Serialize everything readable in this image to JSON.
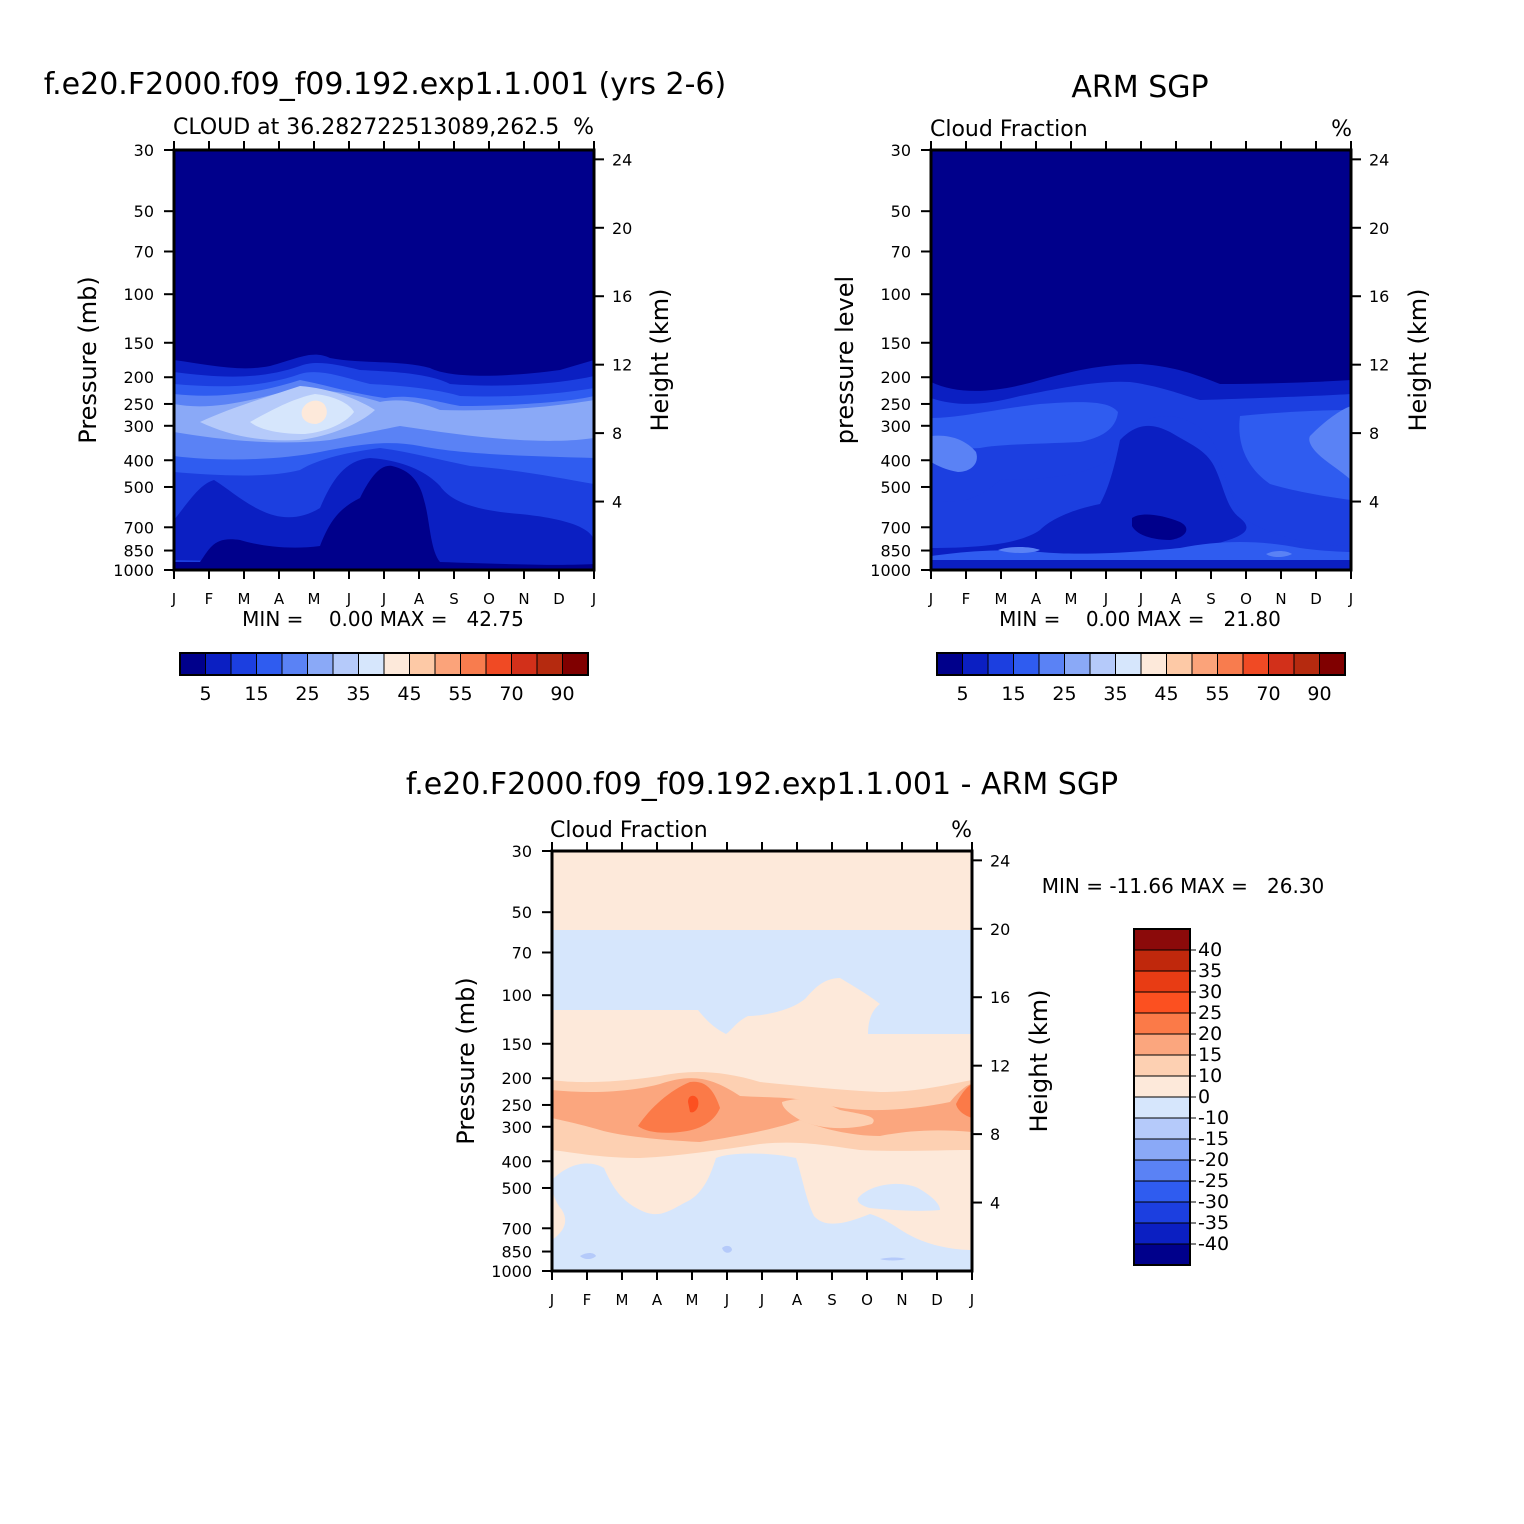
{
  "colors": {
    "deep_navy": "#00008b",
    "band_dark": "#0b1fc2",
    "band_mid": "#1c3fe0",
    "band_blue": "#2f5cf0",
    "band_periwinkle": "#5a82f5",
    "band_light": "#8aa9f7",
    "band_pale": "#b5cafa",
    "band_ice": "#d6e6fc",
    "peach_pale": "#fde9da",
    "peach": "#fdc9a6",
    "salmon": "#fba37a",
    "orange": "#f87c4e",
    "red_orange": "#f04a24"
  },
  "chart_data": [
    {
      "type": "heatmap",
      "suptitle": "f.e20.F2000.f09_f09.192.exp1.1.001 (yrs 2-6)",
      "left_string": "CLOUD at 36.282722513089,262.5",
      "right_string": "%",
      "ylabel": "Pressure (mb)",
      "y2label": "Height (km)",
      "minmax": "MIN =    0.00 MAX =   42.75",
      "min": 0.0,
      "max": 42.75,
      "months": [
        "J",
        "F",
        "M",
        "A",
        "M",
        "J",
        "J",
        "A",
        "S",
        "O",
        "N",
        "D",
        "J"
      ],
      "pressure_ticks": [
        "30",
        "50",
        "70",
        "100",
        "150",
        "200",
        "250",
        "300",
        "400",
        "500",
        "700",
        "850",
        "1000"
      ],
      "pressure_values": [
        30,
        50,
        70,
        100,
        150,
        200,
        250,
        300,
        400,
        500,
        700,
        850,
        1000
      ],
      "height_ticks": [
        "24",
        "20",
        "16",
        "12",
        "8",
        "4"
      ],
      "height_values_km": [
        24,
        20,
        16,
        12,
        8,
        4
      ],
      "colorbar_labels": [
        "5",
        "15",
        "25",
        "35",
        "45",
        "55",
        "70",
        "90"
      ],
      "colorbar_levels": [
        5,
        10,
        15,
        20,
        25,
        30,
        35,
        40,
        45,
        50,
        55,
        60,
        70,
        80,
        90
      ],
      "colorbar_colors": [
        "#00008b",
        "#0b1fc2",
        "#1c3fe0",
        "#2f5cf0",
        "#5a82f5",
        "#8aa9f7",
        "#b5cafa",
        "#d6e6fc",
        "#fde9da",
        "#fdc9a6",
        "#fba37a",
        "#f87c4e",
        "#f04a24",
        "#d2301a",
        "#b52a0f",
        "#800000"
      ]
    },
    {
      "type": "heatmap",
      "suptitle": "ARM SGP",
      "left_string": "Cloud Fraction",
      "right_string": "%",
      "ylabel": "pressure level",
      "y2label": "Height (km)",
      "minmax": "MIN =    0.00 MAX =   21.80",
      "min": 0.0,
      "max": 21.8,
      "months": [
        "J",
        "F",
        "M",
        "A",
        "M",
        "J",
        "J",
        "A",
        "S",
        "O",
        "N",
        "D",
        "J"
      ],
      "pressure_ticks": [
        "30",
        "50",
        "70",
        "100",
        "150",
        "200",
        "250",
        "300",
        "400",
        "500",
        "700",
        "850",
        "1000"
      ],
      "pressure_values": [
        30,
        50,
        70,
        100,
        150,
        200,
        250,
        300,
        400,
        500,
        700,
        850,
        1000
      ],
      "height_ticks": [
        "24",
        "20",
        "16",
        "12",
        "8",
        "4"
      ],
      "height_values_km": [
        24,
        20,
        16,
        12,
        8,
        4
      ],
      "colorbar_labels": [
        "5",
        "15",
        "25",
        "35",
        "45",
        "55",
        "70",
        "90"
      ],
      "colorbar_levels": [
        5,
        10,
        15,
        20,
        25,
        30,
        35,
        40,
        45,
        50,
        55,
        60,
        70,
        80,
        90
      ],
      "colorbar_colors": [
        "#00008b",
        "#0b1fc2",
        "#1c3fe0",
        "#2f5cf0",
        "#5a82f5",
        "#8aa9f7",
        "#b5cafa",
        "#d6e6fc",
        "#fde9da",
        "#fdc9a6",
        "#fba37a",
        "#f87c4e",
        "#f04a24",
        "#d2301a",
        "#b52a0f",
        "#800000"
      ]
    },
    {
      "type": "heatmap",
      "suptitle": "f.e20.F2000.f09_f09.192.exp1.1.001 - ARM SGP",
      "left_string": "Cloud Fraction",
      "right_string": "%",
      "ylabel": "Pressure (mb)",
      "y2label": "Height (km)",
      "minmax": "MIN = -11.66 MAX =   26.30",
      "min": -11.66,
      "max": 26.3,
      "months": [
        "J",
        "F",
        "M",
        "A",
        "M",
        "J",
        "J",
        "A",
        "S",
        "O",
        "N",
        "D",
        "J"
      ],
      "pressure_ticks": [
        "30",
        "50",
        "70",
        "100",
        "150",
        "200",
        "250",
        "300",
        "400",
        "500",
        "700",
        "850",
        "1000"
      ],
      "pressure_values": [
        30,
        50,
        70,
        100,
        150,
        200,
        250,
        300,
        400,
        500,
        700,
        850,
        1000
      ],
      "height_ticks": [
        "24",
        "20",
        "16",
        "12",
        "8",
        "4"
      ],
      "height_values_km": [
        24,
        20,
        16,
        12,
        8,
        4
      ],
      "colorbar_labels": [
        "40",
        "35",
        "30",
        "25",
        "20",
        "15",
        "10",
        "0",
        "-10",
        "-15",
        "-20",
        "-25",
        "-30",
        "-35",
        "-40"
      ],
      "colorbar_colors": [
        "#8b0a0a",
        "#c0280c",
        "#e83c14",
        "#fc5020",
        "#fb7a48",
        "#fba67e",
        "#fdd0b2",
        "#fde9da",
        "#d6e6fc",
        "#b5cafa",
        "#8aa9f7",
        "#5a82f5",
        "#2f5cf0",
        "#1c3fe0",
        "#0b1fc2",
        "#00008b"
      ]
    }
  ]
}
